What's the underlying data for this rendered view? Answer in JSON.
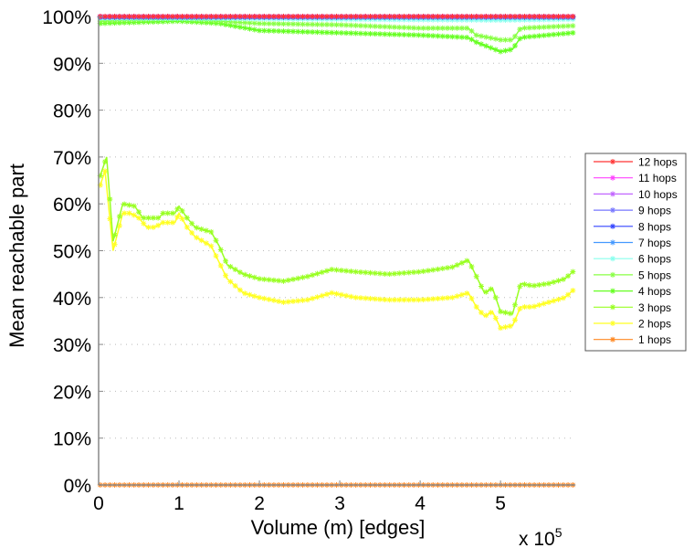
{
  "chart_data": {
    "type": "line",
    "title": "",
    "xlabel": "Volume (m) [edges]",
    "ylabel": "Mean reachable part",
    "x_multiplier": "x 10",
    "x_multiplier_exp": "5",
    "xlim": [
      0,
      5.93
    ],
    "ylim": [
      0,
      100
    ],
    "xticks": [
      "0",
      "1",
      "2",
      "3",
      "4",
      "5"
    ],
    "xtick_values": [
      0,
      1,
      2,
      3,
      4,
      5
    ],
    "yticks": [
      "0%",
      "10%",
      "20%",
      "30%",
      "40%",
      "50%",
      "60%",
      "70%",
      "80%",
      "90%",
      "100%"
    ],
    "ytick_values": [
      0,
      10,
      20,
      30,
      40,
      50,
      60,
      70,
      80,
      90,
      100
    ],
    "grid": "horizontal dotted",
    "legend_position": "right",
    "series": [
      {
        "name": "12 hops",
        "color": "#ff3333",
        "points": [
          [
            0,
            100
          ],
          [
            5.9,
            100
          ]
        ]
      },
      {
        "name": "11 hops",
        "color": "#ff44ff",
        "points": [
          [
            0,
            100
          ],
          [
            5.9,
            100
          ]
        ]
      },
      {
        "name": "10 hops",
        "color": "#c266ff",
        "points": [
          [
            0,
            100
          ],
          [
            5.9,
            100
          ]
        ]
      },
      {
        "name": "9 hops",
        "color": "#7777ff",
        "points": [
          [
            0,
            100
          ],
          [
            5.9,
            100
          ]
        ]
      },
      {
        "name": "8 hops",
        "color": "#3344ff",
        "points": [
          [
            0,
            99.9
          ],
          [
            5.9,
            99.9
          ]
        ]
      },
      {
        "name": "7 hops",
        "color": "#4499ff",
        "points": [
          [
            0,
            99.8
          ],
          [
            5.9,
            99.8
          ]
        ]
      },
      {
        "name": "6 hops",
        "color": "#88ffee",
        "points": [
          [
            0,
            99.6
          ],
          [
            2,
            99.5
          ],
          [
            4,
            99.3
          ],
          [
            5,
            99.2
          ],
          [
            5.9,
            99.4
          ]
        ]
      },
      {
        "name": "5 hops",
        "color": "#88ff44",
        "points": [
          [
            0,
            99
          ],
          [
            1,
            99.5
          ],
          [
            1.5,
            99
          ],
          [
            2,
            98.5
          ],
          [
            3,
            98.2
          ],
          [
            4,
            97.5
          ],
          [
            4.6,
            97.5
          ],
          [
            4.7,
            96
          ],
          [
            5.0,
            95
          ],
          [
            5.15,
            95
          ],
          [
            5.25,
            97.5
          ],
          [
            5.9,
            98
          ]
        ]
      },
      {
        "name": "4 hops",
        "color": "#66ff22",
        "points": [
          [
            0,
            98.5
          ],
          [
            1,
            99
          ],
          [
            1.5,
            98.5
          ],
          [
            2,
            97
          ],
          [
            3,
            96.5
          ],
          [
            4,
            96
          ],
          [
            4.6,
            95.5
          ],
          [
            4.7,
            94.5
          ],
          [
            5.0,
            92.5
          ],
          [
            5.15,
            93
          ],
          [
            5.25,
            95.5
          ],
          [
            5.9,
            96.5
          ]
        ]
      },
      {
        "name": "3 hops",
        "color": "#99ff22",
        "points": [
          [
            0.02,
            66
          ],
          [
            0.1,
            70
          ],
          [
            0.18,
            52
          ],
          [
            0.3,
            60
          ],
          [
            0.45,
            59.5
          ],
          [
            0.55,
            57
          ],
          [
            0.75,
            57
          ],
          [
            0.8,
            58
          ],
          [
            0.95,
            58
          ],
          [
            1.0,
            59.5
          ],
          [
            1.1,
            57
          ],
          [
            1.2,
            55
          ],
          [
            1.4,
            54
          ],
          [
            1.5,
            51
          ],
          [
            1.6,
            47
          ],
          [
            1.8,
            45
          ],
          [
            2.0,
            44
          ],
          [
            2.3,
            43.5
          ],
          [
            2.6,
            44.5
          ],
          [
            2.9,
            46
          ],
          [
            3.2,
            45.5
          ],
          [
            3.6,
            45
          ],
          [
            4.0,
            45.5
          ],
          [
            4.4,
            46.5
          ],
          [
            4.6,
            48
          ],
          [
            4.7,
            44.5
          ],
          [
            4.8,
            41
          ],
          [
            4.9,
            42
          ],
          [
            5.0,
            37
          ],
          [
            5.15,
            36.5
          ],
          [
            5.25,
            43
          ],
          [
            5.4,
            42.5
          ],
          [
            5.6,
            43
          ],
          [
            5.8,
            44
          ],
          [
            5.9,
            45.5
          ]
        ]
      },
      {
        "name": "2 hops",
        "color": "#ffff22",
        "points": [
          [
            0.02,
            64
          ],
          [
            0.08,
            67
          ],
          [
            0.18,
            50
          ],
          [
            0.3,
            58
          ],
          [
            0.4,
            58
          ],
          [
            0.5,
            57
          ],
          [
            0.6,
            55
          ],
          [
            0.7,
            55
          ],
          [
            0.8,
            56
          ],
          [
            0.95,
            56
          ],
          [
            1.0,
            58
          ],
          [
            1.1,
            55
          ],
          [
            1.2,
            53
          ],
          [
            1.4,
            51
          ],
          [
            1.6,
            44
          ],
          [
            1.8,
            41
          ],
          [
            2.0,
            40
          ],
          [
            2.3,
            39
          ],
          [
            2.6,
            39.5
          ],
          [
            2.9,
            41
          ],
          [
            3.2,
            40
          ],
          [
            3.6,
            39.5
          ],
          [
            4.0,
            39.5
          ],
          [
            4.4,
            40
          ],
          [
            4.6,
            41
          ],
          [
            4.7,
            38
          ],
          [
            4.8,
            36
          ],
          [
            4.9,
            37
          ],
          [
            5.0,
            33.5
          ],
          [
            5.15,
            34
          ],
          [
            5.25,
            38
          ],
          [
            5.4,
            38
          ],
          [
            5.6,
            39
          ],
          [
            5.8,
            40
          ],
          [
            5.9,
            41.5
          ]
        ]
      },
      {
        "name": "1 hops",
        "color": "#ff8822",
        "points": [
          [
            0,
            0
          ],
          [
            5.9,
            0
          ]
        ]
      }
    ]
  }
}
